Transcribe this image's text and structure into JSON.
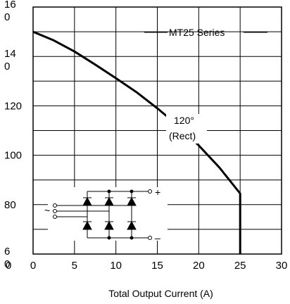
{
  "chart_data": {
    "type": "line",
    "title": "",
    "xlabel": "Total Output Current (A)",
    "ylabel": "",
    "xlim": [
      0,
      30
    ],
    "ylim": [
      60,
      160
    ],
    "grid": true,
    "x_ticks": [
      "0",
      "5",
      "10",
      "15",
      "20",
      "25",
      "30"
    ],
    "y_ticks": [
      {
        "value": 160,
        "lines": [
          "16",
          "0"
        ]
      },
      {
        "value": 140,
        "lines": [
          "14",
          "0"
        ]
      },
      {
        "value": 120,
        "lines": [
          "120"
        ]
      },
      {
        "value": 100,
        "lines": [
          "100"
        ]
      },
      {
        "value": 80,
        "lines": [
          "80"
        ]
      },
      {
        "value": 60,
        "lines": [
          "6",
          "0"
        ]
      }
    ],
    "series": [
      {
        "name": "MT25 Series",
        "x": [
          0,
          2.5,
          5,
          7.5,
          10,
          12.5,
          15,
          17.5,
          20,
          22.5,
          25,
          25
        ],
        "y": [
          150,
          146.5,
          142,
          136.7,
          131.2,
          125.5,
          119,
          112,
          104,
          95,
          84.5,
          60
        ]
      }
    ],
    "annotations": {
      "series_label": "MT25 Series",
      "angle_label": "120°",
      "waveform_label": "(Rect)",
      "plus": "+",
      "minus": "–",
      "ac_symbol": "~"
    }
  }
}
